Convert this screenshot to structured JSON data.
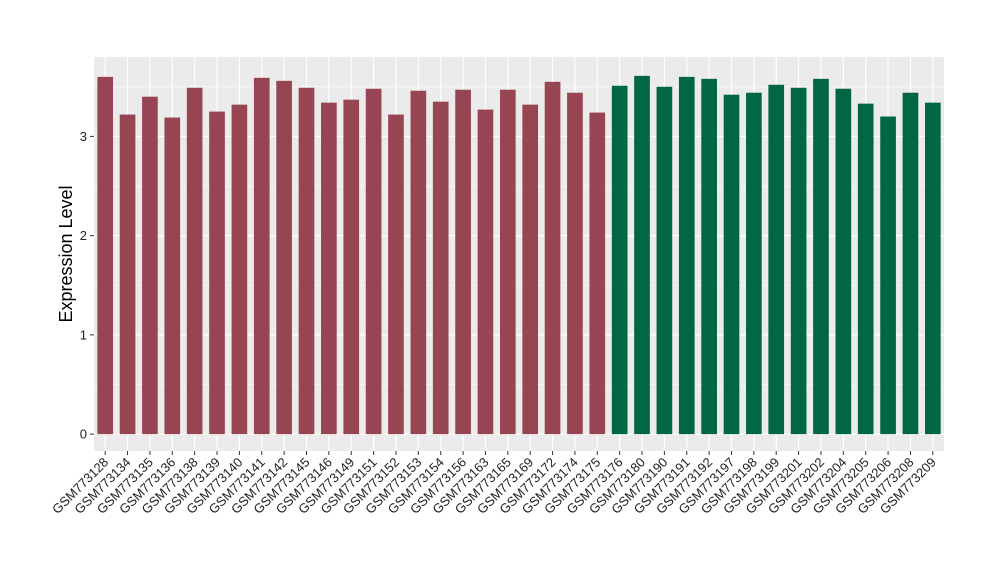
{
  "chart_data": {
    "type": "bar",
    "title": "",
    "xlabel": "",
    "ylabel": "Expression Level",
    "ylim": [
      -0.17,
      3.8
    ],
    "yticks": [
      0,
      1,
      2,
      3
    ],
    "grid": true,
    "legend": "none",
    "colors": {
      "group1": "#984553",
      "group2": "#006644",
      "panel": "#ebebeb",
      "gridline": "#ffffff"
    },
    "categories": [
      "GSM773128",
      "GSM773134",
      "GSM773135",
      "GSM773136",
      "GSM773138",
      "GSM773139",
      "GSM773140",
      "GSM773141",
      "GSM773142",
      "GSM773145",
      "GSM773146",
      "GSM773149",
      "GSM773151",
      "GSM773152",
      "GSM773153",
      "GSM773154",
      "GSM773156",
      "GSM773163",
      "GSM773165",
      "GSM773169",
      "GSM773172",
      "GSM773174",
      "GSM773175",
      "GSM773176",
      "GSM773180",
      "GSM773190",
      "GSM773191",
      "GSM773192",
      "GSM773197",
      "GSM773198",
      "GSM773199",
      "GSM773201",
      "GSM773202",
      "GSM773204",
      "GSM773205",
      "GSM773206",
      "GSM773208",
      "GSM773209"
    ],
    "values": [
      3.6,
      3.22,
      3.4,
      3.19,
      3.49,
      3.25,
      3.32,
      3.59,
      3.56,
      3.49,
      3.34,
      3.37,
      3.48,
      3.22,
      3.46,
      3.35,
      3.47,
      3.27,
      3.47,
      3.32,
      3.55,
      3.44,
      3.24,
      3.51,
      3.61,
      3.5,
      3.6,
      3.58,
      3.42,
      3.44,
      3.52,
      3.49,
      3.58,
      3.48,
      3.33,
      3.2,
      3.44,
      3.34
    ],
    "groups": [
      1,
      1,
      1,
      1,
      1,
      1,
      1,
      1,
      1,
      1,
      1,
      1,
      1,
      1,
      1,
      1,
      1,
      1,
      1,
      1,
      1,
      1,
      1,
      2,
      2,
      2,
      2,
      2,
      2,
      2,
      2,
      2,
      2,
      2,
      2,
      2,
      2,
      2
    ]
  }
}
